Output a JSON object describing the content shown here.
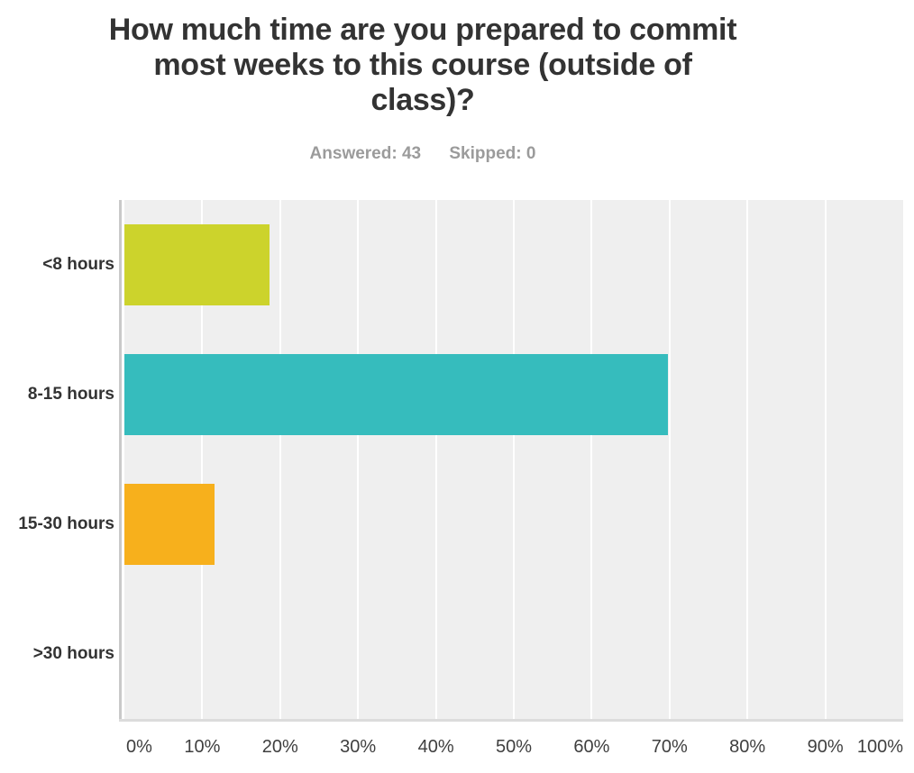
{
  "header": {
    "title_lines": [
      "How much time are you prepared to commit",
      "most weeks to this course (outside of",
      "class)?"
    ],
    "answered_label": "Answered: 43",
    "skipped_label": "Skipped: 0"
  },
  "chart_data": {
    "type": "bar",
    "orientation": "horizontal",
    "title": "How much time are you prepared to commit most weeks to this course (outside of class)?",
    "answered": 43,
    "skipped": 0,
    "categories": [
      "<8 hours",
      "8-15 hours",
      "15-30 hours",
      ">30 hours"
    ],
    "values": [
      18.6,
      69.77,
      11.63,
      0
    ],
    "value_unit": "percent",
    "bar_colors": [
      "#ccd32c",
      "#36bcbd",
      "#f7b01c",
      null
    ],
    "x_ticks": [
      "0%",
      "10%",
      "20%",
      "30%",
      "40%",
      "50%",
      "60%",
      "70%",
      "80%",
      "90%",
      "100%"
    ],
    "xlim": [
      0,
      100
    ],
    "xlabel": "",
    "ylabel": "",
    "grid": true,
    "legend": false,
    "plot_background": "#efefef",
    "gridline_color": "#ffffff"
  }
}
